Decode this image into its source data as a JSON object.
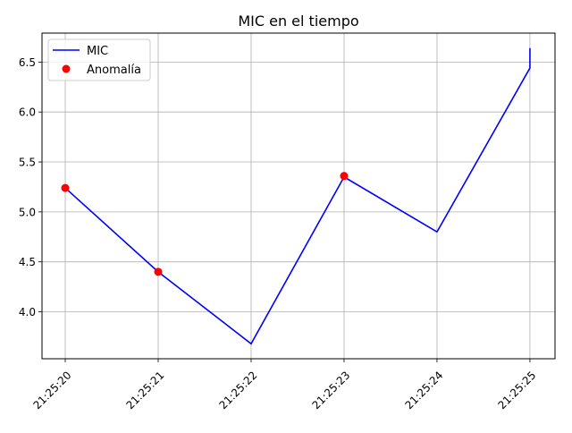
{
  "chart_data": {
    "type": "line",
    "title": "MIC en el tiempo",
    "xlabel": "",
    "ylabel": "",
    "x_ticks": [
      "21:25:20",
      "21:25:21",
      "21:25:22",
      "21:25:23",
      "21:25:24",
      "21:25:25"
    ],
    "y_ticks": [
      4.0,
      4.5,
      5.0,
      5.5,
      6.0,
      6.5
    ],
    "xlim": [
      "21:25:19.75",
      "21:25:25.27"
    ],
    "ylim": [
      3.53,
      6.79
    ],
    "grid": true,
    "legend_position": "top-left",
    "series": [
      {
        "name": "MIC",
        "kind": "line",
        "color": "#0000ff",
        "points": [
          {
            "x": "21:25:20",
            "y": 5.24
          },
          {
            "x": "21:25:21",
            "y": 4.4
          },
          {
            "x": "21:25:22",
            "y": 3.68
          },
          {
            "x": "21:25:23",
            "y": 5.35
          },
          {
            "x": "21:25:24",
            "y": 4.8
          },
          {
            "x": "21:25:25",
            "y": 6.44
          },
          {
            "x": "21:25:25",
            "y": 6.64
          }
        ]
      },
      {
        "name": "Anomalía",
        "kind": "scatter",
        "color": "#ff0000",
        "points": [
          {
            "x": "21:25:20",
            "y": 5.24
          },
          {
            "x": "21:25:21",
            "y": 4.4
          },
          {
            "x": "21:25:23",
            "y": 5.36
          }
        ]
      }
    ]
  }
}
